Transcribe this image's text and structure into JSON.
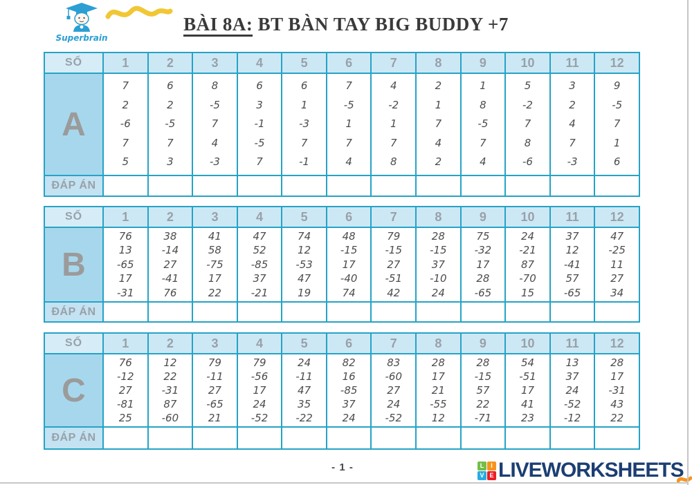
{
  "header": {
    "logo_text": "Superbrain",
    "title_part1": "BÀI 8A:",
    "title_part2": " BT BÀN TAY BIG BUDDY +7"
  },
  "labels": {
    "number_col": "SỐ",
    "answer_row": "ĐÁP ÁN"
  },
  "columns": [
    "1",
    "2",
    "3",
    "4",
    "5",
    "6",
    "7",
    "8",
    "9",
    "10",
    "11",
    "12"
  ],
  "tables": [
    {
      "name": "A",
      "data": [
        [
          7,
          2,
          -6,
          7,
          5
        ],
        [
          6,
          2,
          -5,
          7,
          3
        ],
        [
          8,
          -5,
          7,
          4,
          -3
        ],
        [
          6,
          3,
          -1,
          -5,
          7
        ],
        [
          6,
          1,
          -3,
          7,
          -1
        ],
        [
          7,
          -5,
          1,
          7,
          4
        ],
        [
          4,
          -2,
          1,
          7,
          8
        ],
        [
          2,
          1,
          7,
          4,
          2
        ],
        [
          1,
          8,
          -5,
          7,
          4
        ],
        [
          5,
          -2,
          7,
          8,
          -6
        ],
        [
          3,
          2,
          4,
          7,
          -3
        ],
        [
          9,
          -5,
          7,
          1,
          6
        ]
      ]
    },
    {
      "name": "B",
      "data": [
        [
          76,
          13,
          -65,
          17,
          -31
        ],
        [
          38,
          -14,
          27,
          -41,
          76
        ],
        [
          41,
          58,
          -75,
          17,
          22
        ],
        [
          47,
          52,
          -85,
          37,
          -21
        ],
        [
          74,
          12,
          -53,
          47,
          19
        ],
        [
          48,
          -15,
          17,
          -40,
          74
        ],
        [
          79,
          -15,
          27,
          -51,
          42
        ],
        [
          28,
          -15,
          37,
          -10,
          24
        ],
        [
          75,
          -32,
          17,
          28,
          -65
        ],
        [
          24,
          -21,
          87,
          -70,
          15
        ],
        [
          37,
          12,
          -41,
          57,
          -65
        ],
        [
          47,
          -25,
          11,
          27,
          34
        ]
      ]
    },
    {
      "name": "C",
      "data": [
        [
          76,
          -12,
          27,
          -81,
          25
        ],
        [
          12,
          22,
          -31,
          87,
          -60
        ],
        [
          79,
          -11,
          27,
          -65,
          21
        ],
        [
          79,
          -56,
          17,
          24,
          -52
        ],
        [
          24,
          -11,
          47,
          35,
          -22
        ],
        [
          82,
          16,
          -85,
          37,
          24
        ],
        [
          83,
          -60,
          27,
          24,
          -52
        ],
        [
          28,
          17,
          21,
          -55,
          12
        ],
        [
          28,
          -15,
          57,
          22,
          -71
        ],
        [
          54,
          -51,
          17,
          41,
          23
        ],
        [
          13,
          37,
          24,
          -52,
          -12
        ],
        [
          28,
          17,
          -31,
          43,
          22
        ]
      ]
    }
  ],
  "footer": {
    "page_number": "- 1 -",
    "wordmark": "LIVEWORKSHEETS",
    "logo_squares": [
      {
        "letter": "L",
        "color": "#72bf44"
      },
      {
        "letter": "I",
        "color": "#f7941e"
      },
      {
        "letter": "V",
        "color": "#29abe2"
      },
      {
        "letter": "E",
        "color": "#ed1c24"
      }
    ]
  },
  "colors": {
    "border": "#25a3c6",
    "header_bg": "#cde8f5",
    "header_first_bg": "#d6ecf7",
    "label_bg": "#a7d7ec",
    "answer_label_bg": "#c3e2f2",
    "header_text": "#98a1a8",
    "letter_text": "#9b9b9b",
    "body_text": "#4c4c4c",
    "title_color": "#3a3a3a",
    "wordmark_color": "#1b3e73",
    "brand_blue": "#2b9fd3",
    "squiggle_yellow": "#f0c42a",
    "squiggle_orange": "#f7941e"
  }
}
